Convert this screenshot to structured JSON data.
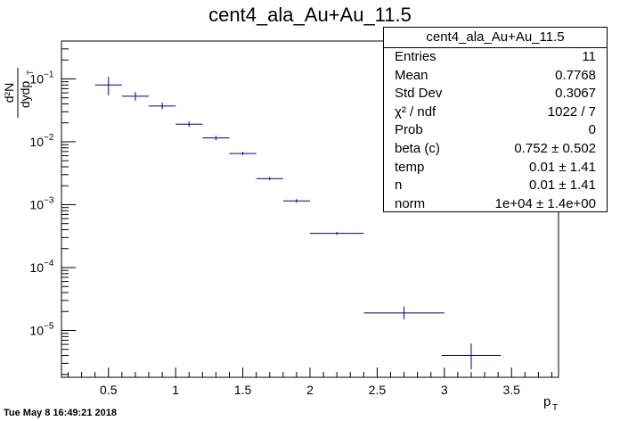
{
  "chart_data": {
    "type": "scatter",
    "title": "cent4_ala_Au+Au_11.5",
    "xlabel": "p",
    "xlabel_sub": "T",
    "ylabel_num": "d²N",
    "ylabel_den": "dydp",
    "ylabel_den_sub": "T",
    "xlim": [
      0.15,
      3.85
    ],
    "ylim": [
      1.8e-06,
      0.4
    ],
    "yscale": "log",
    "x_ticks": [
      0.5,
      1,
      1.5,
      2,
      2.5,
      3,
      3.5
    ],
    "x_tick_labels": [
      "0.5",
      "1",
      "1.5",
      "2",
      "2.5",
      "3",
      "3.5"
    ],
    "y_ticks": [
      {
        "value": 0.1,
        "mant": "10",
        "exp": "−1"
      },
      {
        "value": 0.01,
        "mant": "10",
        "exp": "−2"
      },
      {
        "value": 0.001,
        "mant": "10",
        "exp": "−3"
      },
      {
        "value": 0.0001,
        "mant": "10",
        "exp": "−4"
      },
      {
        "value": 1e-05,
        "mant": "10",
        "exp": "−5"
      }
    ],
    "series": [
      {
        "color": "#000080",
        "points": [
          {
            "x": 0.5,
            "y": 0.08,
            "xerr": 0.1,
            "ylo": 0.055,
            "yhi": 0.108
          },
          {
            "x": 0.7,
            "y": 0.053,
            "xerr": 0.1,
            "ylo": 0.045,
            "yhi": 0.062
          },
          {
            "x": 0.9,
            "y": 0.037,
            "xerr": 0.1,
            "ylo": 0.033,
            "yhi": 0.042
          },
          {
            "x": 1.1,
            "y": 0.019,
            "xerr": 0.1,
            "ylo": 0.0172,
            "yhi": 0.021
          },
          {
            "x": 1.3,
            "y": 0.0115,
            "xerr": 0.1,
            "ylo": 0.0106,
            "yhi": 0.0125
          },
          {
            "x": 1.5,
            "y": 0.0065,
            "xerr": 0.1,
            "ylo": 0.0061,
            "yhi": 0.0069
          },
          {
            "x": 1.7,
            "y": 0.0026,
            "xerr": 0.1,
            "ylo": 0.00244,
            "yhi": 0.00276
          },
          {
            "x": 1.9,
            "y": 0.00115,
            "xerr": 0.1,
            "ylo": 0.00107,
            "yhi": 0.00123
          },
          {
            "x": 2.2,
            "y": 0.00035,
            "xerr": 0.2,
            "ylo": 0.00033,
            "yhi": 0.00037
          },
          {
            "x": 2.7,
            "y": 1.9e-05,
            "xerr": 0.3,
            "ylo": 1.5e-05,
            "yhi": 2.4e-05
          },
          {
            "x": 3.2,
            "y": 4e-06,
            "xerr": 0.22,
            "ylo": 2.4e-06,
            "yhi": 6.2e-06
          }
        ]
      }
    ],
    "grid": false,
    "legend": "top-right"
  },
  "stats": {
    "title": "cent4_ala_Au+Au_11.5",
    "rows": [
      {
        "label": "Entries",
        "value": "11"
      },
      {
        "label": "Mean",
        "value": "0.7768"
      },
      {
        "label": "Std Dev",
        "value": "0.3067"
      },
      {
        "label": "χ² / ndf",
        "value": "1022 / 7"
      },
      {
        "label": "Prob",
        "value": "0"
      },
      {
        "label": "beta (c)",
        "value": "0.752 ± 0.502"
      },
      {
        "label": "temp",
        "value": "0.01 ± 1.41"
      },
      {
        "label": "n",
        "value": "0.01 ± 1.41"
      },
      {
        "label": "norm",
        "value": "1e+04 ± 1.4e+00"
      }
    ]
  },
  "footer": "Tue May  8 16:49:21 2018"
}
